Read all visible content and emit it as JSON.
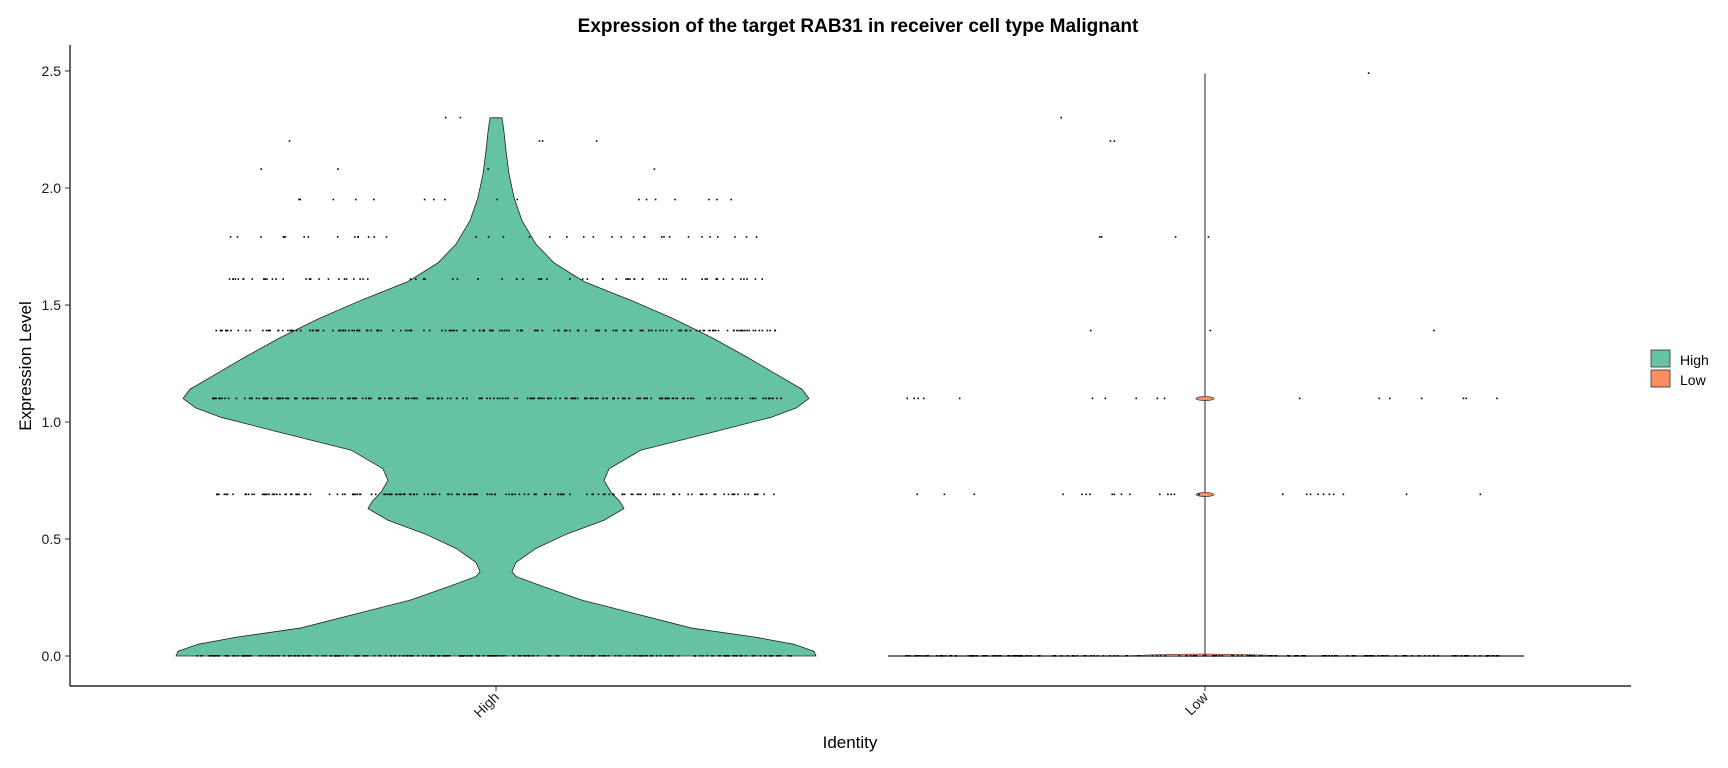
{
  "chart_data": {
    "type": "violin",
    "title": "Expression of the target RAB31 in receiver cell type Malignant",
    "xlabel": "Identity",
    "ylabel": "Expression Level",
    "ylim": [
      -0.12,
      2.6
    ],
    "yticks": [
      0.0,
      0.5,
      1.0,
      1.5,
      2.0,
      2.5
    ],
    "ytick_labels": [
      "0.0",
      "0.5",
      "1.0",
      "1.5",
      "2.0",
      "2.5"
    ],
    "categories": [
      "High",
      "Low"
    ],
    "legend": {
      "position": "right",
      "entries": [
        "High",
        "Low"
      ]
    },
    "colors": {
      "High": "#66C2A5",
      "Low": "#FC8D62"
    },
    "grid": false,
    "series": [
      {
        "name": "High",
        "observed_levels": [
          0.0,
          0.69,
          1.1,
          1.39,
          1.61,
          1.79,
          1.95,
          2.08,
          2.2,
          2.3
        ],
        "violin_max": 2.3
      },
      {
        "name": "Low",
        "observed_levels": [
          0.0,
          0.69,
          1.1,
          1.39,
          1.79,
          2.2,
          2.3,
          2.49
        ],
        "violin_max": 2.49
      }
    ]
  }
}
